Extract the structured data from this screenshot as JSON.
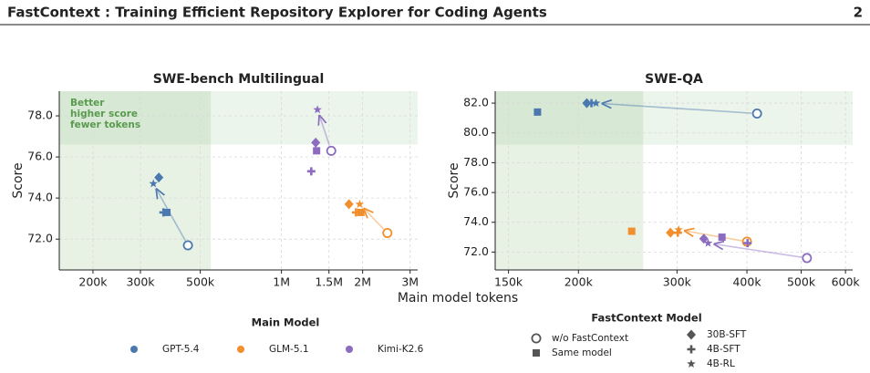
{
  "header": {
    "title": "FastContext : Training Efficient Repository Explorer for Coding Agents",
    "page": "2"
  },
  "x_label": "Main model tokens",
  "fastcontext_legend": {
    "title": "FastContext Model",
    "items": [
      "w/o FastContext",
      "Same model",
      "30B-SFT",
      "4B-SFT",
      "4B-RL"
    ]
  },
  "main_model_legend_title": "Main Model",
  "chart_data": [
    {
      "type": "scatter",
      "title": "SWE-bench Multilingual",
      "y_label": "Score",
      "x_log": true,
      "grid": true,
      "annotation": [
        "Better",
        "higher score",
        "fewer tokens"
      ],
      "better_region": {
        "x_max": 547000,
        "y_min": 76.6
      },
      "markers": [
        "circle-open",
        "square",
        "diamond",
        "plus",
        "star"
      ],
      "xlim": [
        150000,
        3200000
      ],
      "ylim": [
        70.5,
        79.2
      ],
      "xticks": [
        {
          "value": 200000,
          "label": "200k"
        },
        {
          "value": 300000,
          "label": "300k"
        },
        {
          "value": 500000,
          "label": "500k"
        },
        {
          "value": 1000000,
          "label": "1M"
        },
        {
          "value": 1500000,
          "label": "1.5M"
        },
        {
          "value": 2000000,
          "label": "2M"
        },
        {
          "value": 3000000,
          "label": "3M"
        }
      ],
      "yticks": [
        {
          "value": 72,
          "label": "72.0"
        },
        {
          "value": 74,
          "label": "74.0"
        },
        {
          "value": 76,
          "label": "76.0"
        },
        {
          "value": 78,
          "label": "78.0"
        }
      ],
      "series": [
        {
          "name": "GPT-5.4",
          "color": "#4c78b0",
          "x": [
            450000,
            376000,
            351000,
            365000,
            335000
          ],
          "values": [
            71.7,
            73.3,
            75.0,
            73.3,
            74.7
          ]
        },
        {
          "name": "GLM-5.1",
          "color": "#f28e2b",
          "x": [
            2470000,
            1970000,
            1780000,
            1890000,
            1950000
          ],
          "values": [
            72.3,
            73.3,
            73.7,
            73.3,
            73.7
          ]
        },
        {
          "name": "Kimi-K2.6",
          "color": "#8b6cc0",
          "x": [
            1530000,
            1350000,
            1340000,
            1290000,
            1360000
          ],
          "values": [
            76.3,
            76.3,
            76.7,
            75.3,
            78.3
          ]
        }
      ]
    },
    {
      "type": "scatter",
      "title": "SWE-QA",
      "y_label": "Score",
      "x_log": true,
      "grid": true,
      "better_region": {
        "x_max": 261000,
        "y_min": 79.2
      },
      "markers": [
        "circle-open",
        "square",
        "diamond",
        "plus",
        "star"
      ],
      "xlim": [
        142000,
        618000
      ],
      "ylim": [
        70.8,
        82.8
      ],
      "xticks": [
        {
          "value": 150000,
          "label": "150k"
        },
        {
          "value": 200000,
          "label": "200k"
        },
        {
          "value": 300000,
          "label": "300k"
        },
        {
          "value": 400000,
          "label": "400k"
        },
        {
          "value": 500000,
          "label": "500k"
        },
        {
          "value": 600000,
          "label": "600k"
        }
      ],
      "yticks": [
        {
          "value": 72,
          "label": "72.0"
        },
        {
          "value": 74,
          "label": "74.0"
        },
        {
          "value": 76,
          "label": "76.0"
        },
        {
          "value": 78,
          "label": "78.0"
        },
        {
          "value": 80,
          "label": "80.0"
        },
        {
          "value": 82,
          "label": "82.0"
        }
      ],
      "series": [
        {
          "name": "GPT-5.4",
          "color": "#4c78b0",
          "x": [
            417000,
            169000,
            207000,
            211000,
            215000
          ],
          "values": [
            81.3,
            81.4,
            82.0,
            82.0,
            82.0
          ]
        },
        {
          "name": "GLM-5.1",
          "color": "#f28e2b",
          "x": [
            400000,
            249000,
            292000,
            301000,
            302000
          ],
          "values": [
            72.7,
            73.4,
            73.3,
            73.3,
            73.5
          ]
        },
        {
          "name": "Kimi-K2.6",
          "color": "#8b6cc0",
          "x": [
            512000,
            361000,
            335000,
            401000,
            341000
          ],
          "values": [
            71.6,
            73.0,
            72.9,
            72.6,
            72.6
          ]
        }
      ]
    }
  ]
}
